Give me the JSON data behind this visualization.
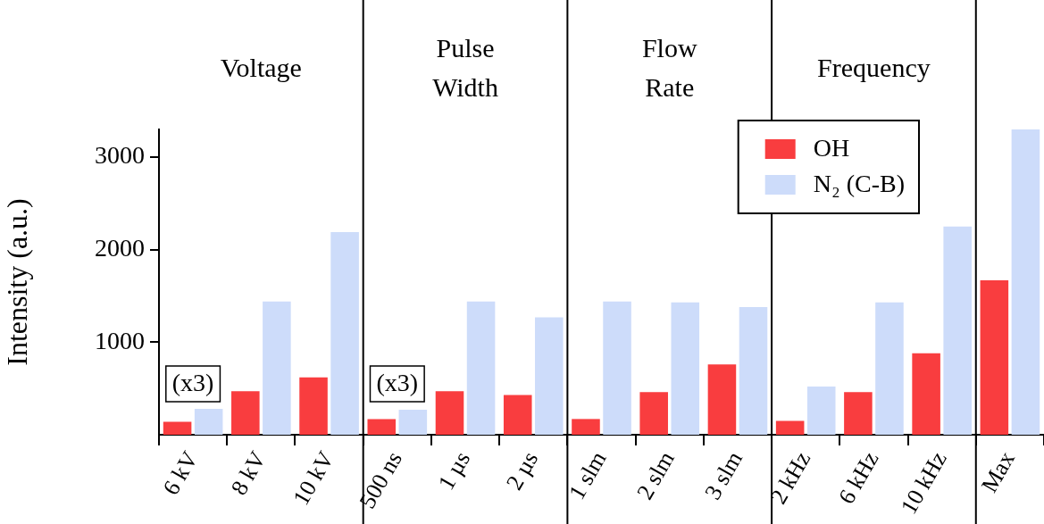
{
  "chart_data": {
    "type": "bar",
    "ylabel": "Intensity (a.u.)",
    "categories": [
      "6 kV",
      "8 kV",
      "10 kV",
      "500 ns",
      "1 µs",
      "2 µs",
      "1 slm",
      "2 slm",
      "3 slm",
      "2 kHz",
      "6 kHz",
      "10 kHz",
      "Max"
    ],
    "series": [
      {
        "name": "OH",
        "color": "#f93d3f",
        "values": [
          140,
          470,
          620,
          170,
          470,
          430,
          170,
          460,
          760,
          150,
          460,
          880,
          1670
        ]
      },
      {
        "name": "N₂ (C-B)",
        "color": "#cddcfa",
        "values": [
          280,
          1440,
          2190,
          270,
          1440,
          1270,
          1440,
          1430,
          1380,
          520,
          1430,
          2250,
          3300
        ]
      }
    ],
    "ylim": [
      0,
      3300
    ],
    "yticks": [
      1000,
      2000,
      3000
    ],
    "legend": "top right",
    "annotations": [
      "Voltage",
      "Pulse\nWidth",
      "Flow\nRate",
      "Frequency",
      "(x3)",
      "(x3)"
    ]
  }
}
